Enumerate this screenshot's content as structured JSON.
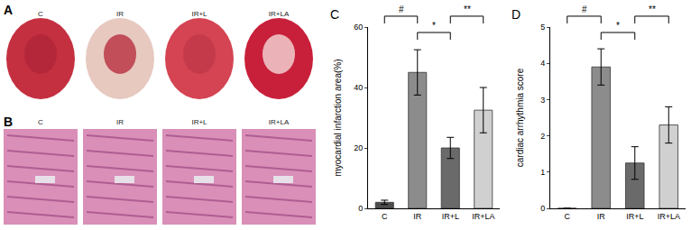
{
  "panels": {
    "A": {
      "label": "A",
      "image_labels": [
        "C",
        "IR",
        "IR+L",
        "IR+LA"
      ]
    },
    "B": {
      "label": "B",
      "image_labels": [
        "C",
        "IR",
        "IR+L",
        "IR+LA"
      ]
    }
  },
  "chart_data": [
    {
      "type": "bar",
      "panel_label": "C",
      "y_label": "myocardial infarction area(%)",
      "categories": [
        "C",
        "IR",
        "IR+L",
        "IR+LA"
      ],
      "values": [
        2,
        45,
        20,
        32.5
      ],
      "errors": [
        0.7,
        7.5,
        3.5,
        7.5
      ],
      "colors": [
        "#4d4d4d",
        "#8c8c8c",
        "#6a6a6a",
        "#d0d0d0"
      ],
      "ylim": [
        0,
        60
      ],
      "yticks": [
        0,
        20,
        40,
        60
      ],
      "grid": false,
      "annotations": [
        {
          "text": "#",
          "between": [
            "C",
            "IR"
          ]
        },
        {
          "text": "*",
          "between": [
            "IR",
            "IR+L"
          ]
        },
        {
          "text": "**",
          "between": [
            "IR+L",
            "IR+LA"
          ]
        }
      ]
    },
    {
      "type": "bar",
      "panel_label": "D",
      "y_label": "cardiac arrhythmia score",
      "categories": [
        "C",
        "IR",
        "IR+L",
        "IR+LA"
      ],
      "values": [
        0,
        3.9,
        1.25,
        2.3
      ],
      "errors": [
        0,
        0.5,
        0.45,
        0.5
      ],
      "colors": [
        "#4d4d4d",
        "#8c8c8c",
        "#6a6a6a",
        "#d0d0d0"
      ],
      "ylim": [
        0,
        5
      ],
      "yticks": [
        0,
        1,
        2,
        3,
        4,
        5
      ],
      "grid": false,
      "annotations": [
        {
          "text": "#",
          "between": [
            "C",
            "IR"
          ]
        },
        {
          "text": "*",
          "between": [
            "IR",
            "IR+L"
          ]
        },
        {
          "text": "**",
          "between": [
            "IR+L",
            "IR+LA"
          ]
        }
      ]
    }
  ]
}
